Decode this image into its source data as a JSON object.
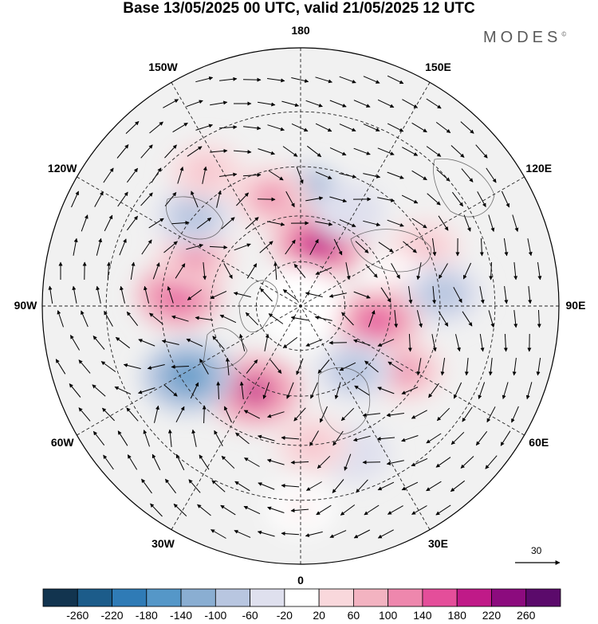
{
  "title": "Base 13/05/2025 00 UTC, valid 21/05/2025 12 UTC",
  "brand": "MODES",
  "brand_mark": "©",
  "longitude_labels": [
    {
      "text": "180",
      "lon": 180
    },
    {
      "text": "150E",
      "lon": 150
    },
    {
      "text": "120E",
      "lon": 120
    },
    {
      "text": "90E",
      "lon": 90
    },
    {
      "text": "60E",
      "lon": 60
    },
    {
      "text": "30E",
      "lon": 30
    },
    {
      "text": "0",
      "lon": 0
    },
    {
      "text": "30W",
      "lon": -30
    },
    {
      "text": "60W",
      "lon": -60
    },
    {
      "text": "90W",
      "lon": -90
    },
    {
      "text": "120W",
      "lon": -120
    },
    {
      "text": "150W",
      "lon": -150
    }
  ],
  "reference_vector_label": "30",
  "colorbar": {
    "ticks": [
      "-260",
      "-220",
      "-180",
      "-140",
      "-100",
      "-60",
      "-20",
      "20",
      "60",
      "100",
      "140",
      "180",
      "220",
      "260"
    ],
    "colors": [
      "#12344f",
      "#1c5c8a",
      "#2f7bb6",
      "#5597c8",
      "#8aaed2",
      "#b8c6e0",
      "#dfe0ee",
      "#ffffff",
      "#f9d8dc",
      "#f3b3c1",
      "#ee87ad",
      "#e44e9a",
      "#c01a88",
      "#8c0b7e",
      "#5b0a6b"
    ]
  },
  "anomaly_centers": [
    {
      "lon": 178,
      "lat": 55,
      "value": -140
    },
    {
      "lon": -165,
      "lat": 53,
      "value": 100
    },
    {
      "lon": 163,
      "lat": 68,
      "value": 200
    },
    {
      "lon": 153,
      "lat": 55,
      "value": -60
    },
    {
      "lon": 115,
      "lat": 46,
      "value": 60
    },
    {
      "lon": 104,
      "lat": 57,
      "value": 20
    },
    {
      "lon": 95,
      "lat": 44,
      "value": -100
    },
    {
      "lon": 78,
      "lat": 64,
      "value": 140
    },
    {
      "lon": 58,
      "lat": 50,
      "value": 100
    },
    {
      "lon": 40,
      "lat": 62,
      "value": -100
    },
    {
      "lon": 20,
      "lat": 40,
      "value": -60
    },
    {
      "lon": 5,
      "lat": 45,
      "value": 60
    },
    {
      "lon": -28,
      "lat": 58,
      "value": 180
    },
    {
      "lon": -58,
      "lat": 47,
      "value": -180
    },
    {
      "lon": -95,
      "lat": 50,
      "value": 140
    },
    {
      "lon": -115,
      "lat": 52,
      "value": 100
    },
    {
      "lon": -130,
      "lat": 45,
      "value": -100
    },
    {
      "lon": -145,
      "lat": 38,
      "value": 60
    },
    {
      "lon": 0,
      "lat": 28,
      "value": 20
    }
  ]
}
